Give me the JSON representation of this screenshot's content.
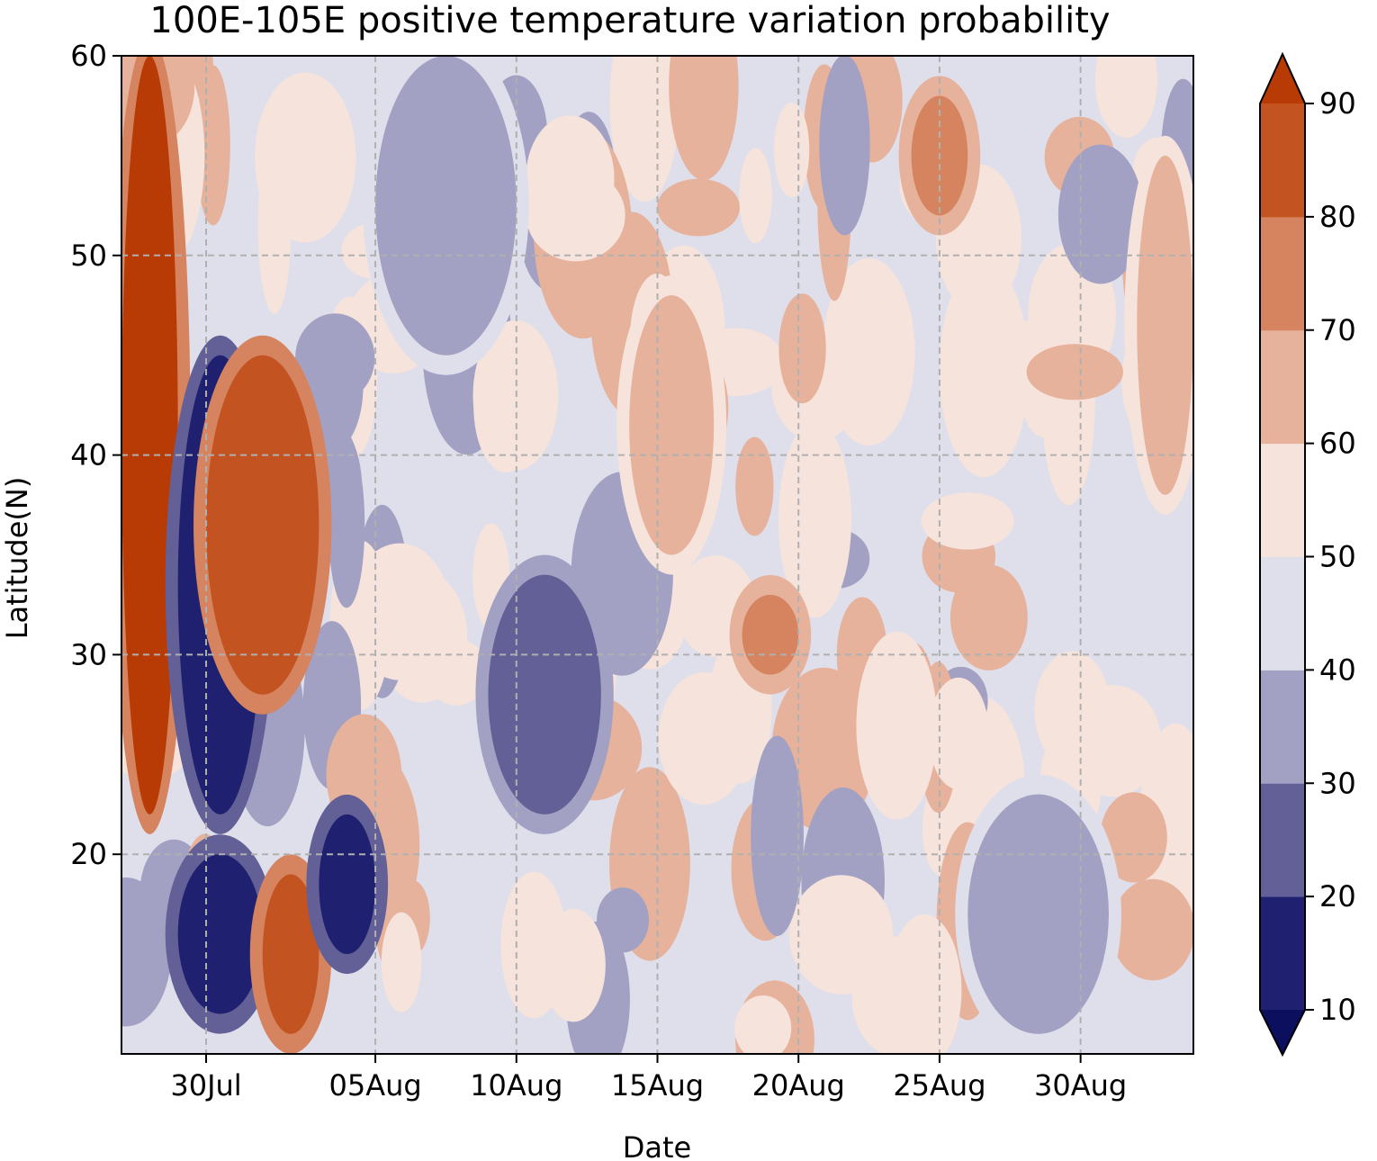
{
  "chart_data": {
    "type": "heatmap",
    "title": "100E-105E positive temperature variation probability",
    "xlabel": "Date",
    "ylabel": "Latitude(N)",
    "x_range": [
      "2023-07-27",
      "2023-09-03"
    ],
    "x_ticks": [
      {
        "date": "2023-07-30",
        "label": "30Jul"
      },
      {
        "date": "2023-08-05",
        "label": "05Aug"
      },
      {
        "date": "2023-08-10",
        "label": "10Aug"
      },
      {
        "date": "2023-08-15",
        "label": "15Aug"
      },
      {
        "date": "2023-08-20",
        "label": "20Aug"
      },
      {
        "date": "2023-08-25",
        "label": "25Aug"
      },
      {
        "date": "2023-08-30",
        "label": "30Aug"
      }
    ],
    "ylim": [
      10,
      60
    ],
    "y_ticks": [
      20,
      30,
      40,
      50,
      60
    ],
    "grid": true,
    "colorbar": {
      "ticks": [
        "10",
        "20",
        "30",
        "40",
        "50",
        "60",
        "70",
        "80",
        "90"
      ],
      "levels": [
        10,
        20,
        30,
        40,
        50,
        60,
        70,
        80,
        90
      ],
      "colors": [
        "#1f2070",
        "#626096",
        "#a2a1c4",
        "#dfdfeb",
        "#f6e3dc",
        "#e7b29b",
        "#d5845f",
        "#c45322"
      ],
      "under_color": "#0b0f5e",
      "over_color": "#b83a05",
      "extend": "both"
    },
    "regions": [
      {
        "date_range": [
          "2023-07-27",
          "2023-07-29"
        ],
        "lat_range": [
          22,
          60
        ],
        "level": "80-90+"
      },
      {
        "date_range": [
          "2023-07-29",
          "2023-08-01"
        ],
        "lat_range": [
          22,
          45
        ],
        "level": "10-20"
      },
      {
        "date_range": [
          "2023-07-30",
          "2023-08-03"
        ],
        "lat_range": [
          28,
          45
        ],
        "level": "80-90"
      },
      {
        "date_range": [
          "2023-07-29",
          "2023-08-01"
        ],
        "lat_range": [
          12,
          20
        ],
        "level": "10-20"
      },
      {
        "date_range": [
          "2023-08-01",
          "2023-08-03"
        ],
        "lat_range": [
          11,
          19
        ],
        "level": "80-90"
      },
      {
        "date_range": [
          "2023-08-03",
          "2023-08-05"
        ],
        "lat_range": [
          15,
          22
        ],
        "level": "10-20"
      },
      {
        "date_range": [
          "2023-08-05",
          "2023-08-10"
        ],
        "lat_range": [
          45,
          60
        ],
        "level": "30-40"
      },
      {
        "date_range": [
          "2023-08-09",
          "2023-08-13"
        ],
        "lat_range": [
          22,
          34
        ],
        "level": "20-40"
      },
      {
        "date_range": [
          "2023-08-14",
          "2023-08-17"
        ],
        "lat_range": [
          35,
          48
        ],
        "level": "60-70"
      },
      {
        "date_range": [
          "2023-08-18",
          "2023-08-20"
        ],
        "lat_range": [
          29,
          33
        ],
        "level": "70-80"
      },
      {
        "date_range": [
          "2023-08-24",
          "2023-08-26"
        ],
        "lat_range": [
          52,
          58
        ],
        "level": "70-80"
      },
      {
        "date_range": [
          "2023-08-26",
          "2023-08-31"
        ],
        "lat_range": [
          11,
          23
        ],
        "level": "30-40"
      },
      {
        "date_range": [
          "2023-09-01",
          "2023-09-03"
        ],
        "lat_range": [
          38,
          55
        ],
        "level": "60-70"
      }
    ]
  }
}
